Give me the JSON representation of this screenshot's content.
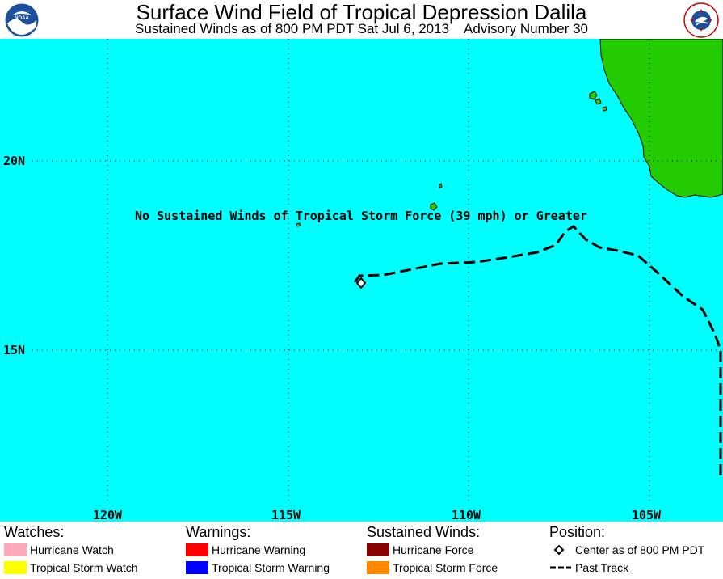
{
  "header": {
    "title": "Surface Wind Field of Tropical Depression Dalila",
    "subtitle": "Sustained Winds as of 800 PM PDT Sat Jul 6, 2013    Advisory Number 30"
  },
  "logos": {
    "left": "noaa-logo",
    "right": "nws-logo",
    "right_text": "NATIONAL WEATHER SERVICE"
  },
  "map": {
    "ocean_color": "#00ffff",
    "land_color": "#22cc00",
    "grid_lat_labels": [
      "20N",
      "15N"
    ],
    "grid_lon_labels": [
      "120W",
      "115W",
      "110W",
      "105W"
    ],
    "annotation": "No Sustained Winds of Tropical Storm Force (39 mph) or Greater",
    "center_symbol": "diamond-icon",
    "track_style": "dashed"
  },
  "legend": {
    "watches": {
      "heading": "Watches:",
      "items": [
        {
          "label": "Hurricane Watch",
          "color": "#ffaabb"
        },
        {
          "label": "Tropical Storm Watch",
          "color": "#ffff00"
        }
      ]
    },
    "warnings": {
      "heading": "Warnings:",
      "items": [
        {
          "label": "Hurricane Warning",
          "color": "#ff0000"
        },
        {
          "label": "Tropical Storm Warning",
          "color": "#0000ff"
        }
      ]
    },
    "winds": {
      "heading": "Sustained Winds:",
      "items": [
        {
          "label": "Hurricane Force",
          "color": "#880000"
        },
        {
          "label": "Tropical Storm Force",
          "color": "#ff8800"
        }
      ]
    },
    "position": {
      "heading": "Position:",
      "items": [
        {
          "label": "Center as of 800 PM PDT",
          "icon": "diamond-icon"
        },
        {
          "label": "Past Track",
          "icon": "dashed-line-icon"
        }
      ]
    }
  }
}
